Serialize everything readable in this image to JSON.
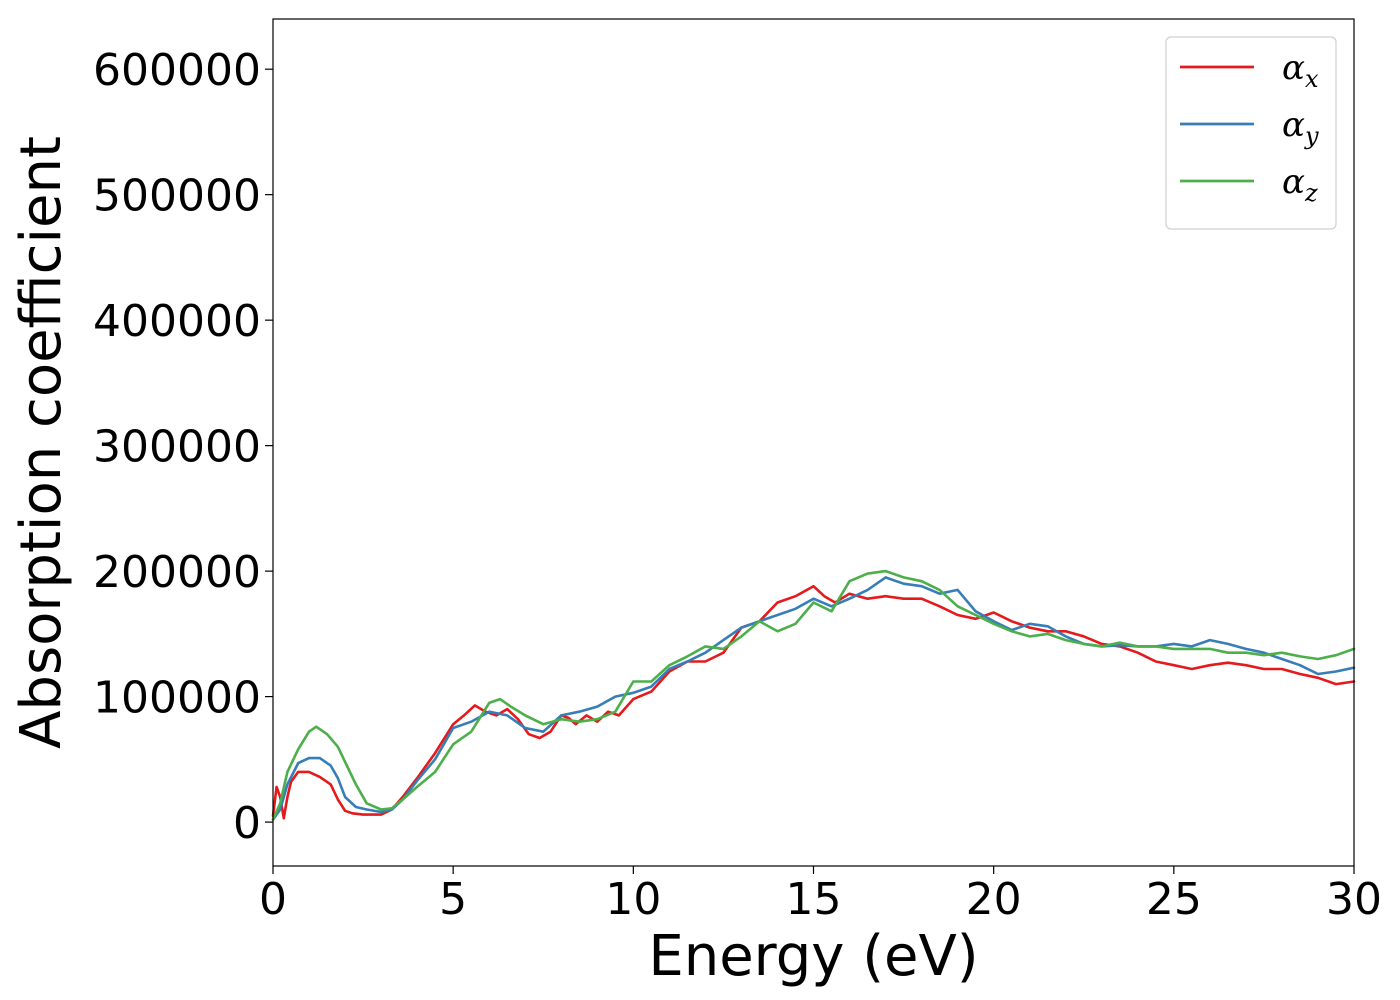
{
  "chart_data": {
    "type": "line",
    "title": "",
    "xlabel": "Energy (eV)",
    "ylabel": "Absorption coefficient",
    "xlim": [
      0,
      30
    ],
    "ylim": [
      -35000,
      640000
    ],
    "xticks": [
      0,
      5,
      10,
      15,
      20,
      25,
      30
    ],
    "xtick_labels": [
      "0",
      "5",
      "10",
      "15",
      "20",
      "25",
      "30"
    ],
    "yticks": [
      0,
      100000,
      200000,
      300000,
      400000,
      500000,
      600000
    ],
    "ytick_labels": [
      "0",
      "100000",
      "200000",
      "300000",
      "400000",
      "500000",
      "600000"
    ],
    "grid": false,
    "legend_position": "top-right",
    "series": [
      {
        "name": "α_x",
        "legend_base": "α",
        "legend_sub": "x",
        "color": "#e41a1c",
        "x": [
          0,
          0.1,
          0.2,
          0.3,
          0.4,
          0.5,
          0.7,
          1.0,
          1.3,
          1.6,
          1.8,
          2.0,
          2.2,
          2.5,
          3.0,
          3.3,
          3.6,
          4.0,
          4.5,
          5.0,
          5.3,
          5.6,
          5.9,
          6.2,
          6.5,
          6.8,
          7.1,
          7.4,
          7.7,
          8.0,
          8.2,
          8.4,
          8.7,
          9.0,
          9.3,
          9.6,
          10.0,
          10.5,
          11.0,
          11.5,
          12.0,
          12.5,
          13.0,
          13.5,
          14.0,
          14.5,
          15.0,
          15.3,
          15.6,
          16.0,
          16.5,
          17.0,
          17.5,
          18.0,
          18.5,
          19.0,
          19.5,
          20.0,
          20.5,
          21.0,
          21.5,
          22.0,
          22.5,
          23.0,
          23.5,
          24.0,
          24.5,
          25.0,
          25.5,
          26.0,
          26.5,
          27.0,
          27.5,
          28.0,
          28.5,
          29.0,
          29.5,
          30.0
        ],
        "values": [
          5000,
          28000,
          20000,
          3000,
          20000,
          32000,
          40000,
          40000,
          36000,
          30000,
          18000,
          9000,
          7000,
          6000,
          6000,
          10000,
          20000,
          35000,
          55000,
          78000,
          85000,
          93000,
          88000,
          85000,
          90000,
          82000,
          70000,
          67000,
          72000,
          85000,
          83000,
          78000,
          85000,
          80000,
          88000,
          85000,
          98000,
          104000,
          120000,
          128000,
          128000,
          135000,
          155000,
          160000,
          175000,
          180000,
          188000,
          180000,
          175000,
          182000,
          178000,
          180000,
          178000,
          178000,
          172000,
          165000,
          162000,
          167000,
          160000,
          155000,
          152000,
          152000,
          148000,
          142000,
          140000,
          135000,
          128000,
          125000,
          122000,
          125000,
          127000,
          125000,
          122000,
          122000,
          118000,
          115000,
          110000,
          112000
        ]
      },
      {
        "name": "α_y",
        "legend_base": "α",
        "legend_sub": "y",
        "color": "#377eb8",
        "x": [
          0,
          0.2,
          0.4,
          0.7,
          1.0,
          1.3,
          1.6,
          1.8,
          2.0,
          2.3,
          2.6,
          3.0,
          3.3,
          3.6,
          4.0,
          4.5,
          5.0,
          5.5,
          6.0,
          6.5,
          7.0,
          7.5,
          8.0,
          8.5,
          9.0,
          9.5,
          10.0,
          10.5,
          11.0,
          11.5,
          12.0,
          12.5,
          13.0,
          13.5,
          14.0,
          14.5,
          15.0,
          15.5,
          16.0,
          16.5,
          17.0,
          17.5,
          18.0,
          18.5,
          19.0,
          19.5,
          20.0,
          20.5,
          21.0,
          21.5,
          22.0,
          22.5,
          23.0,
          23.5,
          24.0,
          24.5,
          25.0,
          25.5,
          26.0,
          26.5,
          27.0,
          27.5,
          28.0,
          28.5,
          29.0,
          29.5,
          30.0
        ],
        "values": [
          2000,
          10000,
          30000,
          47000,
          51000,
          51000,
          45000,
          35000,
          20000,
          12000,
          10000,
          8000,
          10000,
          18000,
          33000,
          50000,
          75000,
          80000,
          88000,
          85000,
          75000,
          72000,
          85000,
          88000,
          92000,
          100000,
          103000,
          108000,
          122000,
          128000,
          135000,
          145000,
          155000,
          160000,
          165000,
          170000,
          178000,
          172000,
          178000,
          185000,
          195000,
          190000,
          188000,
          182000,
          185000,
          168000,
          160000,
          153000,
          158000,
          156000,
          148000,
          142000,
          140000,
          141000,
          140000,
          140000,
          142000,
          140000,
          145000,
          142000,
          138000,
          135000,
          130000,
          125000,
          118000,
          120000,
          123000
        ]
      },
      {
        "name": "α_z",
        "legend_base": "α",
        "legend_sub": "z",
        "color": "#4daf4a",
        "x": [
          0,
          0.2,
          0.4,
          0.7,
          1.0,
          1.2,
          1.5,
          1.8,
          2.0,
          2.3,
          2.6,
          3.0,
          3.3,
          3.6,
          4.0,
          4.5,
          5.0,
          5.5,
          6.0,
          6.3,
          6.6,
          7.0,
          7.5,
          8.0,
          8.5,
          9.0,
          9.5,
          10.0,
          10.5,
          11.0,
          11.5,
          12.0,
          12.5,
          13.0,
          13.5,
          14.0,
          14.5,
          15.0,
          15.5,
          16.0,
          16.5,
          17.0,
          17.5,
          18.0,
          18.5,
          19.0,
          19.5,
          20.0,
          20.5,
          21.0,
          21.5,
          22.0,
          22.5,
          23.0,
          23.5,
          24.0,
          24.5,
          25.0,
          25.5,
          26.0,
          26.5,
          27.0,
          27.5,
          28.0,
          28.5,
          29.0,
          29.5,
          30.0
        ],
        "values": [
          2000,
          15000,
          40000,
          58000,
          72000,
          76000,
          70000,
          60000,
          48000,
          30000,
          15000,
          10000,
          11000,
          18000,
          28000,
          40000,
          62000,
          72000,
          95000,
          98000,
          92000,
          85000,
          78000,
          82000,
          80000,
          82000,
          88000,
          112000,
          112000,
          125000,
          132000,
          140000,
          138000,
          148000,
          160000,
          152000,
          158000,
          175000,
          168000,
          192000,
          198000,
          200000,
          195000,
          192000,
          185000,
          172000,
          165000,
          158000,
          152000,
          148000,
          150000,
          145000,
          142000,
          140000,
          143000,
          140000,
          140000,
          138000,
          138000,
          138000,
          135000,
          135000,
          133000,
          135000,
          132000,
          130000,
          133000,
          138000
        ]
      }
    ]
  }
}
